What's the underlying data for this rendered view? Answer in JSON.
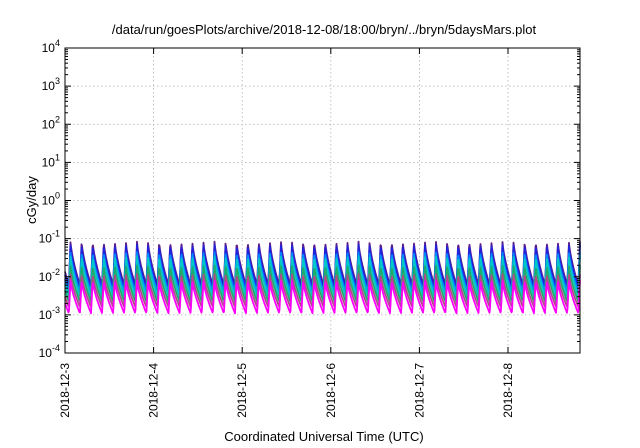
{
  "chart_data": {
    "type": "line",
    "title": "/data/run/goesPlots/archive/2018-12-08/18:00/bryn/../bryn/5daysMars.plot",
    "xlabel": "Coordinated Universal Time (UTC)",
    "ylabel": "cGy/day",
    "yscale": "log",
    "ylim": [
      0.0001,
      10000
    ],
    "xlim": [
      "2018-12-03",
      "2018-12-08T19:30"
    ],
    "grid": true,
    "legend": "none",
    "x_ticks": [
      {
        "date": "2018-12-03",
        "label": "2018-12-3"
      },
      {
        "date": "2018-12-04",
        "label": "2018-12-4"
      },
      {
        "date": "2018-12-05",
        "label": "2018-12-5"
      },
      {
        "date": "2018-12-06",
        "label": "2018-12-6"
      },
      {
        "date": "2018-12-07",
        "label": "2018-12-7"
      },
      {
        "date": "2018-12-08",
        "label": "2018-12-8"
      }
    ],
    "y_ticks": [
      {
        "value": 0.0001,
        "base": "10",
        "exp": "-4"
      },
      {
        "value": 0.001,
        "base": "10",
        "exp": "-3"
      },
      {
        "value": 0.01,
        "base": "10",
        "exp": "-2"
      },
      {
        "value": 0.1,
        "base": "10",
        "exp": "-1"
      },
      {
        "value": 1,
        "base": "10",
        "exp": "0"
      },
      {
        "value": 10,
        "base": "10",
        "exp": "1"
      },
      {
        "value": 100,
        "base": "10",
        "exp": "2"
      },
      {
        "value": 1000,
        "base": "10",
        "exp": "3"
      },
      {
        "value": 10000,
        "base": "10",
        "exp": "4"
      }
    ],
    "oscillation": {
      "period_hours": 3,
      "first_peak": "2018-12-03T01:30"
    },
    "series": [
      {
        "color": "#5a1f8a",
        "peak": 0.085,
        "trough": 0.006
      },
      {
        "color": "#2222dd",
        "peak": 0.07,
        "trough": 0.005
      },
      {
        "color": "#0088ff",
        "peak": 0.045,
        "trough": 0.004
      },
      {
        "color": "#00c8c8",
        "peak": 0.035,
        "trough": 0.003
      },
      {
        "color": "#1faa6e",
        "peak": 0.02,
        "trough": 0.0022
      },
      {
        "color": "#b04a8a",
        "peak": 0.012,
        "trough": 0.0016
      },
      {
        "color": "#ff00ff",
        "peak": 0.008,
        "trough": 0.0011
      }
    ]
  }
}
